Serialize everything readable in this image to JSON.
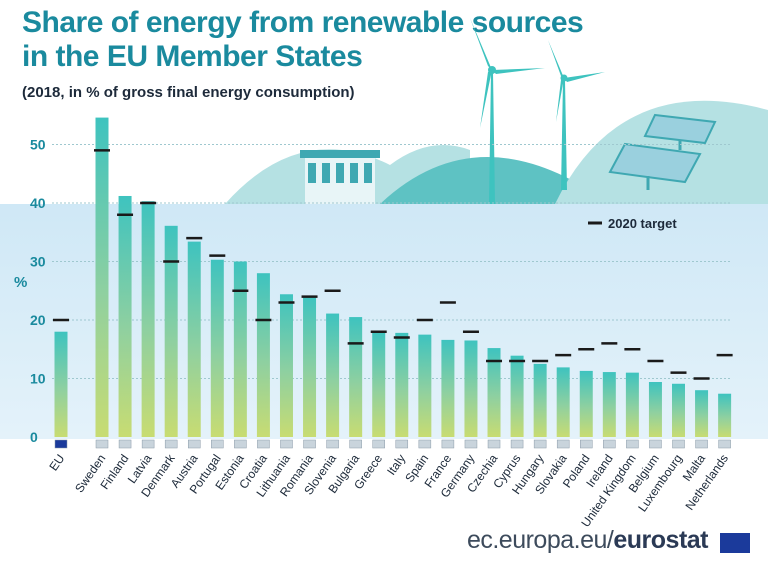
{
  "header": {
    "title_line1": "Share of energy from renewable sources",
    "title_line2": "in the EU Member States",
    "subtitle": "(2018, in % of gross final energy consumption)"
  },
  "footer": {
    "source_prefix": "ec.europa.eu/",
    "source_brand": "eurostat"
  },
  "chart_data": {
    "type": "bar",
    "ylabel": "%",
    "ylim": [
      0,
      55
    ],
    "yticks": [
      0,
      10,
      20,
      30,
      40,
      50
    ],
    "legend": {
      "label": "2020 target",
      "position": "top-right"
    },
    "categories": [
      "EU",
      "Sweden",
      "Finland",
      "Latvia",
      "Denmark",
      "Austria",
      "Portugal",
      "Estonia",
      "Croatia",
      "Lithuania",
      "Romania",
      "Slovenia",
      "Bulgaria",
      "Greece",
      "Italy",
      "Spain",
      "France",
      "Germany",
      "Czechia",
      "Cyprus",
      "Hungary",
      "Slovakia",
      "Poland",
      "Ireland",
      "United Kingdom",
      "Belgium",
      "Luxembourg",
      "Malta",
      "Netherlands"
    ],
    "values": [
      18.0,
      54.6,
      41.2,
      40.3,
      36.1,
      33.4,
      30.3,
      30.0,
      28.0,
      24.4,
      23.9,
      21.1,
      20.5,
      18.0,
      17.8,
      17.5,
      16.6,
      16.5,
      15.2,
      13.9,
      12.5,
      11.9,
      11.3,
      11.1,
      11.0,
      9.4,
      9.1,
      8.0,
      7.4
    ],
    "targets": [
      20,
      49,
      38,
      40,
      30,
      34,
      31,
      25,
      20,
      23,
      24,
      25,
      16,
      18,
      17,
      20,
      23,
      18,
      13,
      13,
      13,
      14,
      15,
      16,
      15,
      13,
      11,
      10,
      14
    ]
  },
  "colors": {
    "title": "#1a8a9e",
    "bar_top": "#3ec3bf",
    "bar_bottom": "#c8dc72",
    "target": "#1a1a1a",
    "plot_bg": "#cfe8f6",
    "hill": "#5ec2c3",
    "hill_light": "#b5e1e3"
  }
}
